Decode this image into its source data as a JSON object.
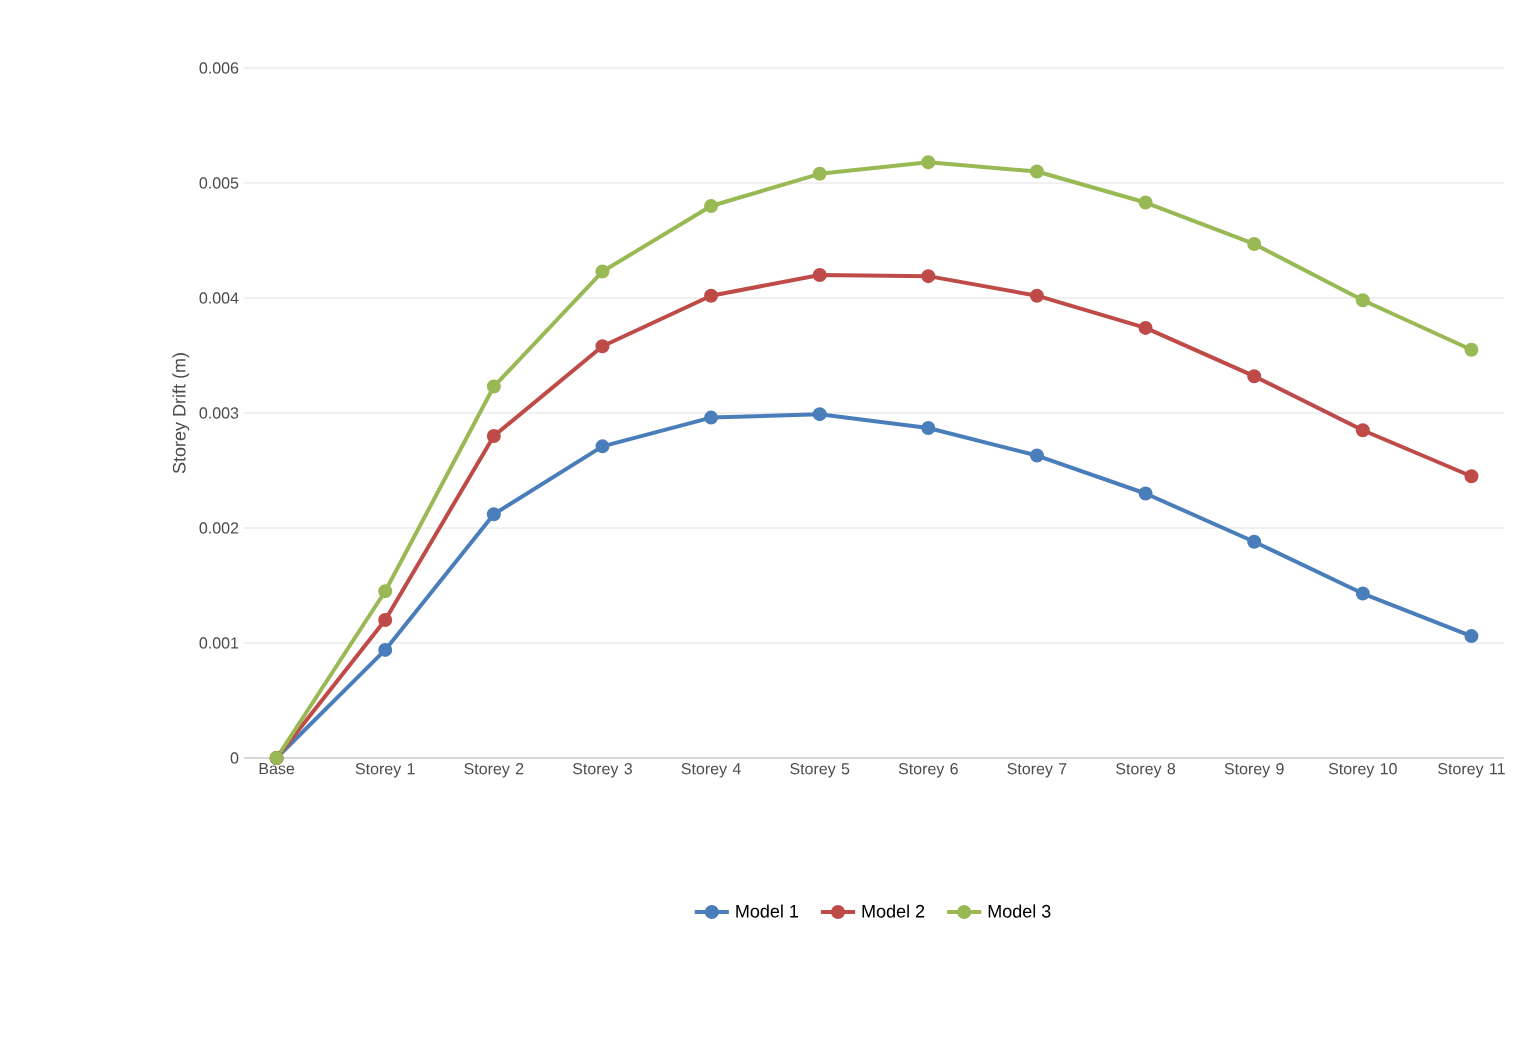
{
  "chart_data": {
    "type": "line",
    "ylabel": "Storey Drift (m)",
    "categories": [
      "Base",
      "Storey 1",
      "Storey 2",
      "Storey 3",
      "Storey 4",
      "Storey 5",
      "Storey 6",
      "Storey 7",
      "Storey 8",
      "Storey 9",
      "Storey 10",
      "Storey 11"
    ],
    "series": [
      {
        "name": "Model 1",
        "color": "#4a7ebb",
        "values": [
          0,
          0.00094,
          0.00212,
          0.00271,
          0.00296,
          0.00299,
          0.00287,
          0.00263,
          0.0023,
          0.00188,
          0.00143,
          0.00106
        ]
      },
      {
        "name": "Model 2",
        "color": "#be4b48",
        "values": [
          0,
          0.0012,
          0.0028,
          0.00358,
          0.00402,
          0.0042,
          0.00419,
          0.00402,
          0.00374,
          0.00332,
          0.00285,
          0.00245
        ]
      },
      {
        "name": "Model 3",
        "color": "#98b954",
        "values": [
          0,
          0.00145,
          0.00323,
          0.00423,
          0.0048,
          0.00508,
          0.00518,
          0.0051,
          0.00483,
          0.00447,
          0.00398,
          0.00355
        ]
      }
    ],
    "ylim": [
      0,
      0.006
    ],
    "yticks": [
      {
        "value": 0,
        "label": "0"
      },
      {
        "value": 0.001,
        "label": "0.001"
      },
      {
        "value": 0.002,
        "label": "0.002"
      },
      {
        "value": 0.003,
        "label": "0.003"
      },
      {
        "value": 0.004,
        "label": "0.004"
      },
      {
        "value": 0.005,
        "label": "0.005"
      },
      {
        "value": 0.006,
        "label": "0.006"
      }
    ],
    "grid": "y",
    "legend": "bottom",
    "marker": "circle",
    "line_style": "solid"
  }
}
